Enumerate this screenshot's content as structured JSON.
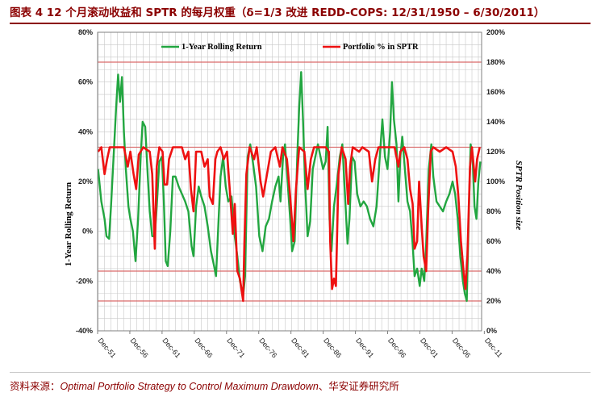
{
  "title": "图表 4 12 个月滚动收益和 SPTR 的每月权重（δ=1/3 改进 REDD-COPS: 12/31/1950 – 6/30/2011）",
  "source": {
    "prefix": "资料来源：",
    "paper": "Optimal Portfolio Strategy to Control Maximum Drawdown",
    "suffix": "、华安证券研究所"
  },
  "chart_data": {
    "type": "line",
    "xlabel": "",
    "ylabel_left": "1-Year Rolling Return",
    "ylabel_right": "SPTR Position size",
    "x_range": [
      1951.92,
      2011.5
    ],
    "x_ticks": [
      "Dec-51",
      "Dec-56",
      "Dec-61",
      "Dec-66",
      "Dec-71",
      "Dec-76",
      "Dec-81",
      "Dec-86",
      "Dec-91",
      "Dec-96",
      "Dec-01",
      "Dec-06",
      "Dec-11"
    ],
    "y_left": {
      "range": [
        -0.4,
        0.8
      ],
      "ticks": [
        "80%",
        "60%",
        "40%",
        "20%",
        "0%",
        "-20%",
        "-40%"
      ]
    },
    "y_right": {
      "range": [
        0,
        2.0
      ],
      "ticks": [
        "200%",
        "180%",
        "160%",
        "140%",
        "120%",
        "100%",
        "80%",
        "60%",
        "40%",
        "20%",
        "0%"
      ]
    },
    "reference_lines_right_axis": [
      1.8,
      1.23,
      0.4,
      0.2
    ],
    "legend": [
      "1-Year Rolling Return",
      "Portfolio % in SPTR"
    ],
    "colors": {
      "rolling_return": "#22a640",
      "portfolio": "#ee1111",
      "reference": "#d96a6a",
      "grid": "#c8c8c8"
    },
    "series": [
      {
        "name": "1-Year Rolling Return",
        "axis": "left",
        "points": [
          [
            1952.0,
            0.25
          ],
          [
            1952.5,
            0.12
          ],
          [
            1953.0,
            0.05
          ],
          [
            1953.3,
            -0.02
          ],
          [
            1953.7,
            -0.03
          ],
          [
            1954.0,
            0.1
          ],
          [
            1954.4,
            0.3
          ],
          [
            1954.8,
            0.5
          ],
          [
            1955.1,
            0.63
          ],
          [
            1955.4,
            0.52
          ],
          [
            1955.7,
            0.62
          ],
          [
            1956.0,
            0.4
          ],
          [
            1956.3,
            0.25
          ],
          [
            1956.7,
            0.1
          ],
          [
            1957.0,
            0.05
          ],
          [
            1957.4,
            0.0
          ],
          [
            1957.8,
            -0.12
          ],
          [
            1958.2,
            0.05
          ],
          [
            1958.6,
            0.3
          ],
          [
            1958.9,
            0.44
          ],
          [
            1959.3,
            0.42
          ],
          [
            1959.7,
            0.22
          ],
          [
            1960.0,
            0.08
          ],
          [
            1960.4,
            -0.02
          ],
          [
            1960.8,
            -0.02
          ],
          [
            1961.1,
            0.1
          ],
          [
            1961.5,
            0.28
          ],
          [
            1961.9,
            0.3
          ],
          [
            1962.2,
            0.12
          ],
          [
            1962.5,
            -0.12
          ],
          [
            1962.8,
            -0.14
          ],
          [
            1963.2,
            0.0
          ],
          [
            1963.6,
            0.22
          ],
          [
            1964.0,
            0.22
          ],
          [
            1964.5,
            0.18
          ],
          [
            1965.0,
            0.15
          ],
          [
            1965.5,
            0.12
          ],
          [
            1966.0,
            0.08
          ],
          [
            1966.5,
            -0.06
          ],
          [
            1966.8,
            -0.1
          ],
          [
            1967.2,
            0.1
          ],
          [
            1967.6,
            0.18
          ],
          [
            1968.0,
            0.14
          ],
          [
            1968.5,
            0.1
          ],
          [
            1969.0,
            0.02
          ],
          [
            1969.5,
            -0.08
          ],
          [
            1970.0,
            -0.14
          ],
          [
            1970.3,
            -0.18
          ],
          [
            1970.7,
            0.05
          ],
          [
            1971.0,
            0.22
          ],
          [
            1971.4,
            0.3
          ],
          [
            1971.8,
            0.18
          ],
          [
            1972.2,
            0.12
          ],
          [
            1972.7,
            0.14
          ],
          [
            1973.2,
            -0.02
          ],
          [
            1973.6,
            -0.1
          ],
          [
            1974.0,
            -0.2
          ],
          [
            1974.5,
            -0.26
          ],
          [
            1974.8,
            -0.18
          ],
          [
            1975.2,
            0.3
          ],
          [
            1975.6,
            0.35
          ],
          [
            1976.0,
            0.28
          ],
          [
            1976.5,
            0.18
          ],
          [
            1977.0,
            -0.02
          ],
          [
            1977.5,
            -0.08
          ],
          [
            1978.0,
            0.02
          ],
          [
            1978.5,
            0.05
          ],
          [
            1979.0,
            0.12
          ],
          [
            1979.5,
            0.18
          ],
          [
            1980.0,
            0.22
          ],
          [
            1980.3,
            0.12
          ],
          [
            1980.7,
            0.3
          ],
          [
            1981.0,
            0.35
          ],
          [
            1981.4,
            0.2
          ],
          [
            1981.8,
            0.05
          ],
          [
            1982.1,
            -0.08
          ],
          [
            1982.5,
            -0.04
          ],
          [
            1982.9,
            0.3
          ],
          [
            1983.2,
            0.5
          ],
          [
            1983.5,
            0.64
          ],
          [
            1983.8,
            0.44
          ],
          [
            1984.1,
            0.2
          ],
          [
            1984.5,
            -0.02
          ],
          [
            1984.9,
            0.04
          ],
          [
            1985.3,
            0.25
          ],
          [
            1985.7,
            0.3
          ],
          [
            1986.1,
            0.35
          ],
          [
            1986.5,
            0.3
          ],
          [
            1986.9,
            0.25
          ],
          [
            1987.3,
            0.28
          ],
          [
            1987.6,
            0.42
          ],
          [
            1987.9,
            0.05
          ],
          [
            1988.2,
            -0.08
          ],
          [
            1988.6,
            0.1
          ],
          [
            1989.0,
            0.18
          ],
          [
            1989.5,
            0.3
          ],
          [
            1989.9,
            0.35
          ],
          [
            1990.3,
            0.15
          ],
          [
            1990.7,
            -0.05
          ],
          [
            1991.0,
            0.05
          ],
          [
            1991.4,
            0.3
          ],
          [
            1991.8,
            0.28
          ],
          [
            1992.2,
            0.15
          ],
          [
            1992.7,
            0.1
          ],
          [
            1993.2,
            0.12
          ],
          [
            1993.7,
            0.1
          ],
          [
            1994.2,
            0.05
          ],
          [
            1994.7,
            0.02
          ],
          [
            1995.2,
            0.1
          ],
          [
            1995.7,
            0.3
          ],
          [
            1996.1,
            0.45
          ],
          [
            1996.5,
            0.3
          ],
          [
            1996.9,
            0.25
          ],
          [
            1997.3,
            0.4
          ],
          [
            1997.6,
            0.6
          ],
          [
            1997.9,
            0.45
          ],
          [
            1998.3,
            0.35
          ],
          [
            1998.6,
            0.12
          ],
          [
            1998.9,
            0.3
          ],
          [
            1999.2,
            0.38
          ],
          [
            1999.6,
            0.25
          ],
          [
            2000.0,
            0.12
          ],
          [
            2000.4,
            0.08
          ],
          [
            2000.8,
            -0.05
          ],
          [
            2001.1,
            -0.18
          ],
          [
            2001.5,
            -0.15
          ],
          [
            2001.9,
            -0.22
          ],
          [
            2002.2,
            -0.15
          ],
          [
            2002.6,
            -0.2
          ],
          [
            2002.9,
            -0.05
          ],
          [
            2003.3,
            0.25
          ],
          [
            2003.7,
            0.35
          ],
          [
            2004.0,
            0.22
          ],
          [
            2004.5,
            0.12
          ],
          [
            2005.0,
            0.1
          ],
          [
            2005.5,
            0.08
          ],
          [
            2006.0,
            0.12
          ],
          [
            2006.5,
            0.15
          ],
          [
            2007.0,
            0.2
          ],
          [
            2007.4,
            0.15
          ],
          [
            2007.8,
            0.05
          ],
          [
            2008.2,
            -0.1
          ],
          [
            2008.6,
            -0.2
          ],
          [
            2008.9,
            -0.25
          ],
          [
            2009.2,
            -0.28
          ],
          [
            2009.5,
            0.05
          ],
          [
            2009.8,
            0.35
          ],
          [
            2010.1,
            0.3
          ],
          [
            2010.4,
            0.1
          ],
          [
            2010.7,
            0.05
          ],
          [
            2011.0,
            0.2
          ],
          [
            2011.3,
            0.28
          ]
        ]
      },
      {
        "name": "Portfolio % in SPTR",
        "axis": "right",
        "points": [
          [
            1952.0,
            1.2
          ],
          [
            1952.5,
            1.23
          ],
          [
            1953.0,
            1.05
          ],
          [
            1953.4,
            1.15
          ],
          [
            1953.8,
            1.23
          ],
          [
            1955.0,
            1.23
          ],
          [
            1956.0,
            1.23
          ],
          [
            1956.6,
            1.1
          ],
          [
            1957.0,
            1.2
          ],
          [
            1957.5,
            1.05
          ],
          [
            1957.9,
            0.95
          ],
          [
            1958.3,
            1.18
          ],
          [
            1959.0,
            1.23
          ],
          [
            1960.0,
            1.2
          ],
          [
            1960.4,
            1.05
          ],
          [
            1960.8,
            0.55
          ],
          [
            1961.1,
            1.1
          ],
          [
            1961.5,
            1.23
          ],
          [
            1962.0,
            1.2
          ],
          [
            1962.3,
            0.98
          ],
          [
            1962.7,
            0.98
          ],
          [
            1963.0,
            1.15
          ],
          [
            1963.6,
            1.23
          ],
          [
            1965.0,
            1.23
          ],
          [
            1965.5,
            1.15
          ],
          [
            1966.0,
            1.2
          ],
          [
            1966.4,
            0.95
          ],
          [
            1966.8,
            0.8
          ],
          [
            1967.2,
            1.2
          ],
          [
            1968.0,
            1.2
          ],
          [
            1968.5,
            1.1
          ],
          [
            1969.0,
            1.15
          ],
          [
            1969.3,
            0.9
          ],
          [
            1969.8,
            0.85
          ],
          [
            1970.2,
            1.15
          ],
          [
            1970.5,
            1.2
          ],
          [
            1971.0,
            1.23
          ],
          [
            1971.5,
            1.15
          ],
          [
            1972.0,
            1.2
          ],
          [
            1972.5,
            0.9
          ],
          [
            1972.9,
            0.65
          ],
          [
            1973.2,
            0.85
          ],
          [
            1973.6,
            0.4
          ],
          [
            1974.0,
            0.35
          ],
          [
            1974.5,
            0.2
          ],
          [
            1974.7,
            0.6
          ],
          [
            1975.0,
            1.05
          ],
          [
            1975.5,
            1.23
          ],
          [
            1976.2,
            1.15
          ],
          [
            1976.6,
            1.23
          ],
          [
            1977.2,
            1.0
          ],
          [
            1977.6,
            0.9
          ],
          [
            1978.2,
            1.05
          ],
          [
            1978.8,
            1.2
          ],
          [
            1979.5,
            1.23
          ],
          [
            1980.2,
            1.1
          ],
          [
            1980.6,
            1.23
          ],
          [
            1981.3,
            1.15
          ],
          [
            1981.8,
            0.9
          ],
          [
            1982.3,
            0.6
          ],
          [
            1982.7,
            0.95
          ],
          [
            1983.2,
            1.23
          ],
          [
            1984.0,
            1.2
          ],
          [
            1984.5,
            0.95
          ],
          [
            1985.0,
            1.15
          ],
          [
            1985.5,
            1.23
          ],
          [
            1986.5,
            1.23
          ],
          [
            1987.3,
            1.23
          ],
          [
            1987.8,
            1.2
          ],
          [
            1988.0,
            0.6
          ],
          [
            1988.3,
            0.28
          ],
          [
            1988.6,
            0.35
          ],
          [
            1988.9,
            0.3
          ],
          [
            1989.3,
            1.05
          ],
          [
            1989.8,
            1.23
          ],
          [
            1990.4,
            1.15
          ],
          [
            1990.8,
            0.85
          ],
          [
            1991.1,
            1.1
          ],
          [
            1991.5,
            1.23
          ],
          [
            1992.5,
            1.2
          ],
          [
            1993.0,
            1.23
          ],
          [
            1994.0,
            1.2
          ],
          [
            1994.5,
            1.0
          ],
          [
            1995.0,
            1.15
          ],
          [
            1995.5,
            1.23
          ],
          [
            1997.0,
            1.23
          ],
          [
            1998.0,
            1.23
          ],
          [
            1998.6,
            1.1
          ],
          [
            1998.9,
            1.2
          ],
          [
            1999.5,
            1.23
          ],
          [
            2000.0,
            1.15
          ],
          [
            2000.4,
            0.95
          ],
          [
            2000.8,
            0.85
          ],
          [
            2001.1,
            0.55
          ],
          [
            2001.5,
            0.6
          ],
          [
            2001.8,
            1.0
          ],
          [
            2002.2,
            0.7
          ],
          [
            2002.5,
            0.5
          ],
          [
            2002.9,
            0.4
          ],
          [
            2003.2,
            0.8
          ],
          [
            2003.6,
            1.2
          ],
          [
            2004.0,
            1.23
          ],
          [
            2005.0,
            1.2
          ],
          [
            2006.0,
            1.23
          ],
          [
            2007.0,
            1.2
          ],
          [
            2007.5,
            1.1
          ],
          [
            2007.9,
            0.9
          ],
          [
            2008.3,
            0.6
          ],
          [
            2008.7,
            0.4
          ],
          [
            2009.0,
            0.28
          ],
          [
            2009.3,
            0.5
          ],
          [
            2009.7,
            1.1
          ],
          [
            2010.0,
            1.23
          ],
          [
            2010.5,
            1.0
          ],
          [
            2010.8,
            1.15
          ],
          [
            2011.2,
            1.23
          ]
        ]
      }
    ]
  }
}
